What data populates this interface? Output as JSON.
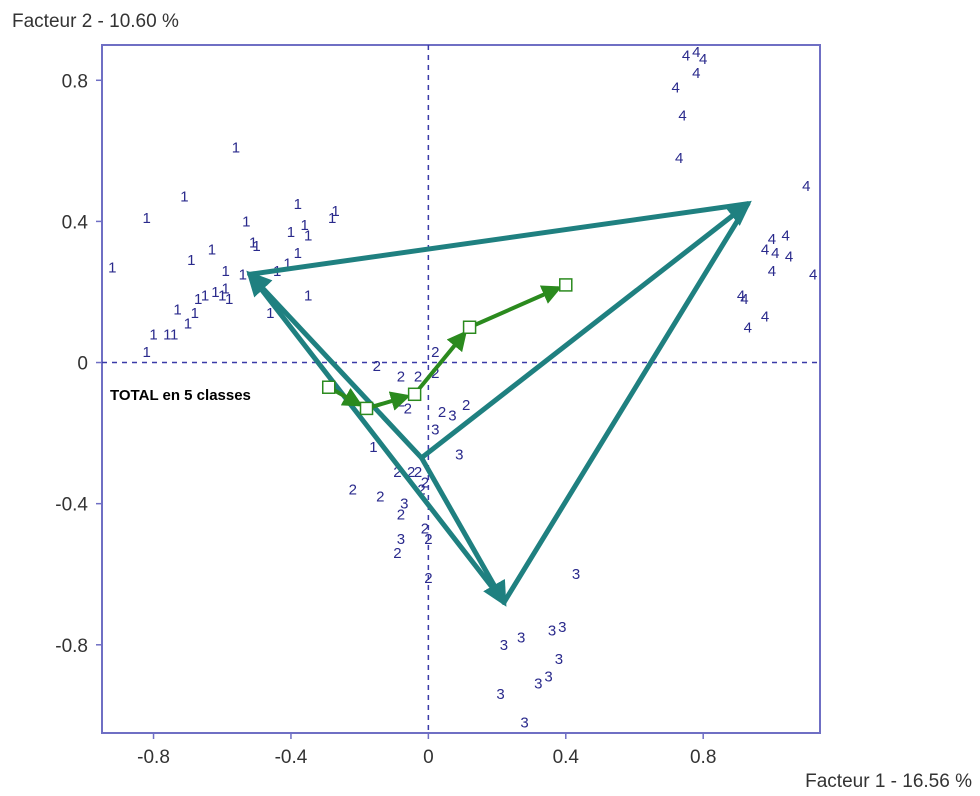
{
  "chart_data": {
    "type": "scatter",
    "xlabel": "Facteur 1  -  16.56 %",
    "ylabel": "Facteur 2  -  10.60 %",
    "xlim": [
      -0.95,
      1.14
    ],
    "ylim": [
      -1.05,
      0.9
    ],
    "x_ticks": [
      -0.8,
      -0.4,
      0,
      0.4,
      0.8
    ],
    "y_ticks": [
      0.8,
      0.4,
      0,
      -0.4,
      -0.8
    ],
    "x_tick_labels": [
      "-0.8",
      "-0.4",
      "0",
      "0.4",
      "0.8"
    ],
    "y_tick_labels": [
      "0.8",
      "0.4",
      "0",
      "-0.4",
      "-0.8"
    ],
    "zero_lines": "dashed",
    "grid": false,
    "annotation": "TOTAL en 5 classes",
    "colors": {
      "frame": "#6f6fc4",
      "zero_lines": "#3a3aa8",
      "points": "#2a2a8c",
      "triangle": "#1f8080",
      "trajectory": "#2b8a1e",
      "square_fill": "#ffffff"
    },
    "points": [
      {
        "label": "1",
        "x": -0.56,
        "y": 0.61
      },
      {
        "label": "1",
        "x": -0.82,
        "y": 0.41
      },
      {
        "label": "1",
        "x": -0.71,
        "y": 0.47
      },
      {
        "label": "1",
        "x": -0.53,
        "y": 0.4
      },
      {
        "label": "1",
        "x": -0.51,
        "y": 0.34
      },
      {
        "label": "1",
        "x": -0.5,
        "y": 0.33
      },
      {
        "label": "1",
        "x": -0.92,
        "y": 0.27
      },
      {
        "label": "1",
        "x": -0.69,
        "y": 0.29
      },
      {
        "label": "1",
        "x": -0.63,
        "y": 0.32
      },
      {
        "label": "1",
        "x": -0.59,
        "y": 0.26
      },
      {
        "label": "1",
        "x": -0.54,
        "y": 0.25
      },
      {
        "label": "1",
        "x": -0.4,
        "y": 0.37
      },
      {
        "label": "1",
        "x": -0.38,
        "y": 0.45
      },
      {
        "label": "1",
        "x": -0.36,
        "y": 0.39
      },
      {
        "label": "1",
        "x": -0.35,
        "y": 0.36
      },
      {
        "label": "1",
        "x": -0.27,
        "y": 0.43
      },
      {
        "label": "1",
        "x": -0.28,
        "y": 0.41
      },
      {
        "label": "1",
        "x": -0.38,
        "y": 0.31
      },
      {
        "label": "1",
        "x": -0.41,
        "y": 0.28
      },
      {
        "label": "1",
        "x": -0.44,
        "y": 0.26
      },
      {
        "label": "1",
        "x": -0.35,
        "y": 0.19
      },
      {
        "label": "1",
        "x": -0.59,
        "y": 0.21
      },
      {
        "label": "1",
        "x": -0.62,
        "y": 0.2
      },
      {
        "label": "1",
        "x": -0.6,
        "y": 0.19
      },
      {
        "label": "1",
        "x": -0.58,
        "y": 0.18
      },
      {
        "label": "1",
        "x": -0.65,
        "y": 0.19
      },
      {
        "label": "1",
        "x": -0.67,
        "y": 0.18
      },
      {
        "label": "1",
        "x": -0.46,
        "y": 0.14
      },
      {
        "label": "1",
        "x": -0.68,
        "y": 0.14
      },
      {
        "label": "1",
        "x": -0.73,
        "y": 0.15
      },
      {
        "label": "1",
        "x": -0.7,
        "y": 0.11
      },
      {
        "label": "1",
        "x": -0.76,
        "y": 0.08
      },
      {
        "label": "1",
        "x": -0.74,
        "y": 0.08
      },
      {
        "label": "1",
        "x": -0.8,
        "y": 0.08
      },
      {
        "label": "1",
        "x": -0.82,
        "y": 0.03
      },
      {
        "label": "1",
        "x": -0.16,
        "y": -0.24
      },
      {
        "label": "2",
        "x": -0.15,
        "y": -0.01
      },
      {
        "label": "2",
        "x": -0.08,
        "y": -0.04
      },
      {
        "label": "2",
        "x": -0.03,
        "y": -0.04
      },
      {
        "label": "2",
        "x": 0.02,
        "y": -0.03
      },
      {
        "label": "2",
        "x": 0.02,
        "y": 0.03
      },
      {
        "label": "2",
        "x": -0.06,
        "y": -0.13
      },
      {
        "label": "2",
        "x": -0.08,
        "y": -0.11
      },
      {
        "label": "2",
        "x": 0.04,
        "y": -0.14
      },
      {
        "label": "2",
        "x": 0.11,
        "y": -0.12
      },
      {
        "label": "2",
        "x": -0.09,
        "y": -0.31
      },
      {
        "label": "2",
        "x": -0.05,
        "y": -0.31
      },
      {
        "label": "2",
        "x": -0.03,
        "y": -0.31
      },
      {
        "label": "2",
        "x": -0.01,
        "y": -0.34
      },
      {
        "label": "2",
        "x": -0.22,
        "y": -0.36
      },
      {
        "label": "2",
        "x": -0.14,
        "y": -0.38
      },
      {
        "label": "2",
        "x": -0.02,
        "y": -0.36
      },
      {
        "label": "2",
        "x": -0.08,
        "y": -0.43
      },
      {
        "label": "2",
        "x": -0.01,
        "y": -0.47
      },
      {
        "label": "2",
        "x": 0.0,
        "y": -0.5
      },
      {
        "label": "2",
        "x": -0.09,
        "y": -0.54
      },
      {
        "label": "2",
        "x": 0.0,
        "y": -0.61
      },
      {
        "label": "3",
        "x": 0.02,
        "y": -0.19
      },
      {
        "label": "3",
        "x": 0.07,
        "y": -0.15
      },
      {
        "label": "3",
        "x": 0.09,
        "y": -0.26
      },
      {
        "label": "3",
        "x": -0.07,
        "y": -0.4
      },
      {
        "label": "3",
        "x": -0.08,
        "y": -0.5
      },
      {
        "label": "3",
        "x": 0.43,
        "y": -0.6
      },
      {
        "label": "3",
        "x": 0.22,
        "y": -0.8
      },
      {
        "label": "3",
        "x": 0.27,
        "y": -0.78
      },
      {
        "label": "3",
        "x": 0.36,
        "y": -0.76
      },
      {
        "label": "3",
        "x": 0.39,
        "y": -0.75
      },
      {
        "label": "3",
        "x": 0.38,
        "y": -0.84
      },
      {
        "label": "3",
        "x": 0.35,
        "y": -0.89
      },
      {
        "label": "3",
        "x": 0.32,
        "y": -0.91
      },
      {
        "label": "3",
        "x": 0.21,
        "y": -0.94
      },
      {
        "label": "3",
        "x": 0.28,
        "y": -1.02
      },
      {
        "label": "4",
        "x": 0.75,
        "y": 0.87
      },
      {
        "label": "4",
        "x": 0.78,
        "y": 0.88
      },
      {
        "label": "4",
        "x": 0.8,
        "y": 0.86
      },
      {
        "label": "4",
        "x": 0.78,
        "y": 0.82
      },
      {
        "label": "4",
        "x": 0.72,
        "y": 0.78
      },
      {
        "label": "4",
        "x": 0.74,
        "y": 0.7
      },
      {
        "label": "4",
        "x": 0.73,
        "y": 0.58
      },
      {
        "label": "4",
        "x": 1.1,
        "y": 0.5
      },
      {
        "label": "4",
        "x": 1.04,
        "y": 0.36
      },
      {
        "label": "4",
        "x": 1.0,
        "y": 0.35
      },
      {
        "label": "4",
        "x": 0.98,
        "y": 0.32
      },
      {
        "label": "4",
        "x": 1.01,
        "y": 0.31
      },
      {
        "label": "4",
        "x": 1.05,
        "y": 0.3
      },
      {
        "label": "4",
        "x": 1.0,
        "y": 0.26
      },
      {
        "label": "4",
        "x": 1.12,
        "y": 0.25
      },
      {
        "label": "4",
        "x": 0.91,
        "y": 0.19
      },
      {
        "label": "4",
        "x": 0.92,
        "y": 0.18
      },
      {
        "label": "4",
        "x": 0.98,
        "y": 0.13
      },
      {
        "label": "4",
        "x": 0.93,
        "y": 0.1
      }
    ],
    "triangle": {
      "vertices": [
        {
          "x": -0.52,
          "y": 0.25
        },
        {
          "x": 0.93,
          "y": 0.45
        },
        {
          "x": 0.22,
          "y": -0.68
        }
      ],
      "center": {
        "x": -0.02,
        "y": -0.27
      }
    },
    "trajectory": [
      {
        "x": -0.29,
        "y": -0.07
      },
      {
        "x": -0.18,
        "y": -0.13
      },
      {
        "x": -0.04,
        "y": -0.09
      },
      {
        "x": 0.12,
        "y": 0.1
      },
      {
        "x": 0.4,
        "y": 0.22
      }
    ]
  }
}
